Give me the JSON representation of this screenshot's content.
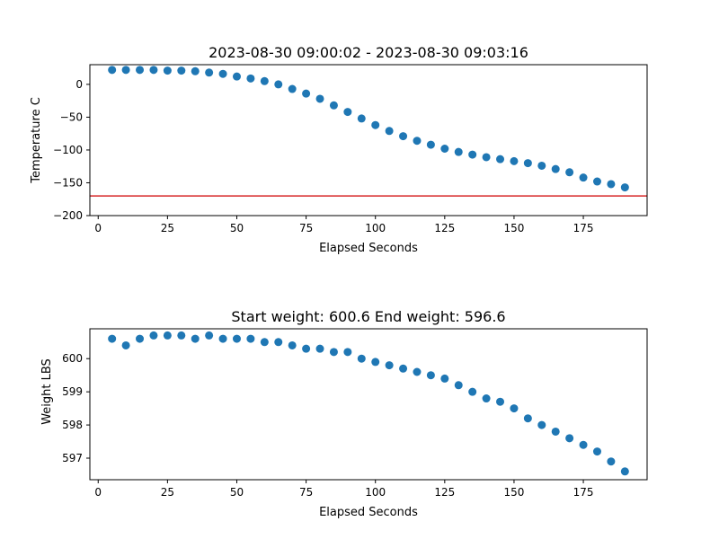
{
  "chart_data": [
    {
      "type": "scatter",
      "title": "2023-08-30 09:00:02 - 2023-08-30 09:03:16",
      "xlabel": "Elapsed Seconds",
      "ylabel": "Temperature C",
      "xlim": [
        -3,
        198
      ],
      "ylim": [
        -200,
        30
      ],
      "xticks": [
        0,
        25,
        50,
        75,
        100,
        125,
        150,
        175
      ],
      "yticks": [
        -200,
        -150,
        -100,
        -50,
        0
      ],
      "yticklabels": [
        "−200",
        "−150",
        "−100",
        "−50",
        "0"
      ],
      "grid": false,
      "marker_color": "#1f77b4",
      "reference_line": {
        "y": -170,
        "color": "#d62728"
      },
      "x": [
        5,
        10,
        15,
        20,
        25,
        30,
        35,
        40,
        45,
        50,
        55,
        60,
        65,
        70,
        75,
        80,
        85,
        90,
        95,
        100,
        105,
        110,
        115,
        120,
        125,
        130,
        135,
        140,
        145,
        150,
        155,
        160,
        165,
        170,
        175,
        180,
        185,
        190
      ],
      "y": [
        22,
        22,
        22,
        22,
        21,
        21,
        20,
        18,
        16,
        12,
        9,
        5,
        0,
        -7,
        -14,
        -22,
        -32,
        -42,
        -52,
        -62,
        -71,
        -79,
        -86,
        -92,
        -98,
        -103,
        -107,
        -111,
        -114,
        -117,
        -120,
        -124,
        -129,
        -134,
        -142,
        -148,
        -152,
        -157
      ]
    },
    {
      "type": "scatter",
      "title": "Start weight: 600.6 End weight: 596.6",
      "xlabel": "Elapsed Seconds",
      "ylabel": "Weight LBS",
      "xlim": [
        -3,
        198
      ],
      "ylim": [
        596.35,
        600.9
      ],
      "xticks": [
        0,
        25,
        50,
        75,
        100,
        125,
        150,
        175
      ],
      "yticks": [
        597,
        598,
        599,
        600
      ],
      "yticklabels": [
        "597",
        "598",
        "599",
        "600"
      ],
      "grid": false,
      "marker_color": "#1f77b4",
      "x": [
        5,
        10,
        15,
        20,
        25,
        30,
        35,
        40,
        45,
        50,
        55,
        60,
        65,
        70,
        75,
        80,
        85,
        90,
        95,
        100,
        105,
        110,
        115,
        120,
        125,
        130,
        135,
        140,
        145,
        150,
        155,
        160,
        165,
        170,
        175,
        180,
        185,
        190
      ],
      "y": [
        600.6,
        600.4,
        600.6,
        600.7,
        600.7,
        600.7,
        600.6,
        600.7,
        600.6,
        600.6,
        600.6,
        600.5,
        600.5,
        600.4,
        600.3,
        600.3,
        600.2,
        600.2,
        600.0,
        599.9,
        599.8,
        599.7,
        599.6,
        599.5,
        599.4,
        599.2,
        599.0,
        598.8,
        598.7,
        598.5,
        598.2,
        598.0,
        597.8,
        597.6,
        597.4,
        597.2,
        596.9,
        596.6
      ]
    }
  ]
}
